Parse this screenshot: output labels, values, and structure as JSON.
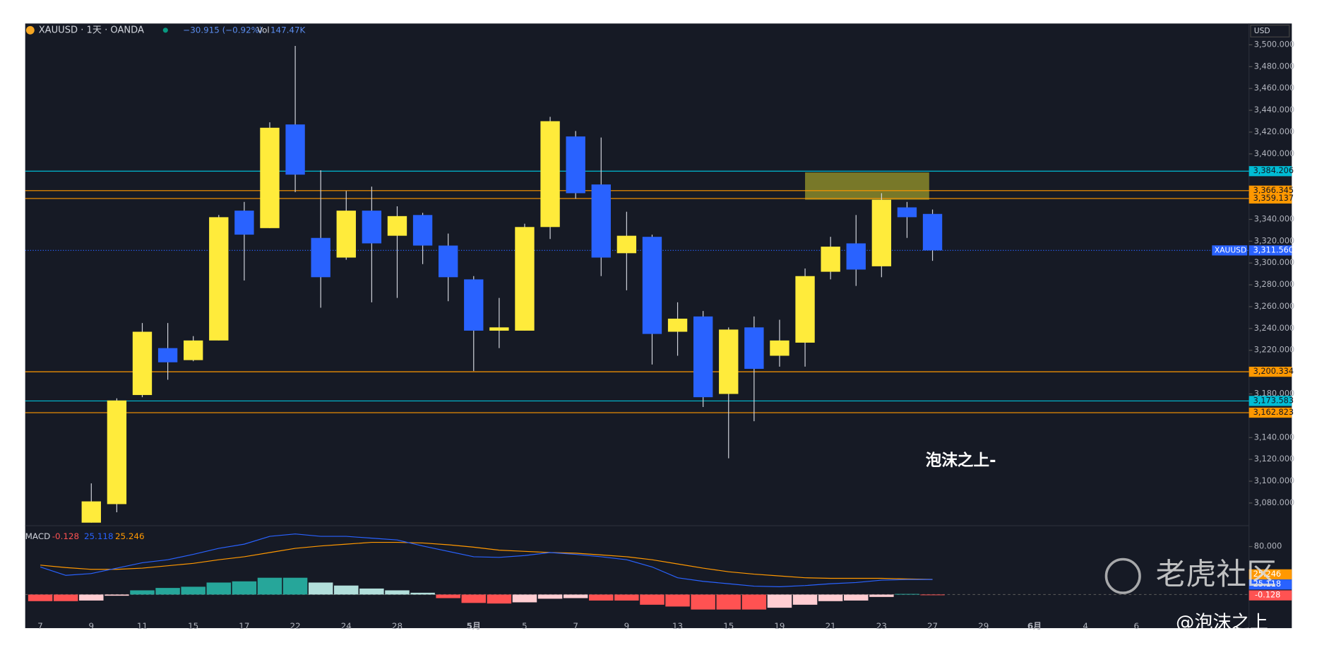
{
  "chart_data": [
    {
      "type": "candlestick",
      "title": "XAUUSD · 1天 · OANDA",
      "change": "−30.915 (−0.92%)",
      "volume_label": "Vol",
      "volume": "147.47K",
      "currency": "USD",
      "symbol_tag": "XAUUSD",
      "annotation": "泡沫之上-",
      "categories": [
        "7",
        null,
        "9",
        null,
        "11",
        null,
        "15",
        null,
        "17",
        null,
        "22",
        null,
        "24",
        null,
        "28",
        null,
        null,
        "5月",
        null,
        "5",
        null,
        "7",
        null,
        "9",
        null,
        "13",
        null,
        "15",
        null,
        "19",
        null,
        "21",
        null,
        "23",
        null,
        "27",
        null,
        "29",
        null,
        "6月",
        null,
        "4",
        null,
        "6"
      ],
      "open": [
        null,
        null,
        3062,
        3079,
        3179,
        3222,
        3211,
        3229,
        3348,
        3332,
        3427,
        3323,
        3305,
        3348,
        3325,
        3344,
        3316,
        3285,
        3238,
        3238,
        3333,
        3416,
        3372,
        3309,
        3324,
        3237,
        3251,
        3180,
        3241,
        3215,
        3227,
        3292,
        3318,
        3297,
        3351,
        3345,
        null,
        null,
        null,
        null,
        null,
        null,
        null,
        null
      ],
      "high": [
        null,
        null,
        3098,
        3176,
        3245,
        3245,
        3233,
        3344,
        3356,
        3429,
        3499,
        3385,
        3366,
        3370,
        3352,
        3346,
        3327,
        3288,
        3268,
        3336,
        3434,
        3421,
        3415,
        3347,
        3326,
        3264,
        3256,
        3241,
        3251,
        3248,
        3295,
        3324,
        3344,
        3364,
        3356,
        3349,
        null,
        null,
        null,
        null,
        null,
        null,
        null,
        null
      ],
      "low": [
        null,
        null,
        3062,
        3071.5,
        3177,
        3193,
        3210,
        3229,
        3284,
        3332,
        3365,
        3259,
        3303,
        3264,
        3268,
        3299,
        3265,
        3201,
        3222,
        3238,
        3322,
        3359,
        3288,
        3275,
        3207,
        3215,
        3168,
        3121,
        3155,
        3205,
        3205,
        3285,
        3279,
        3287,
        3323,
        3302,
        null,
        null,
        null,
        null,
        null,
        null,
        null,
        null
      ],
      "close": [
        null,
        null,
        3081.5,
        3174,
        3237,
        3209,
        3229,
        3342,
        3326,
        3424,
        3381,
        3287,
        3348,
        3318,
        3343,
        3316,
        3287,
        3238,
        3241,
        3333,
        3430,
        3364,
        3305,
        3325,
        3235,
        3249,
        3177,
        3239,
        3203,
        3229,
        3288,
        3315,
        3294,
        3358,
        3342,
        3311.56,
        null,
        null,
        null,
        null,
        null,
        null,
        null,
        null
      ],
      "up_color": "#ffeb3b",
      "down_color": "#2962ff",
      "wick_color": "#d1d4dc",
      "ylim": [
        3060,
        3518
      ],
      "yticks": [
        {
          "value": 3500,
          "label": "3,500.000"
        },
        {
          "value": 3480,
          "label": "3,480.000"
        },
        {
          "value": 3460,
          "label": "3,460.000"
        },
        {
          "value": 3440,
          "label": "3,440.000"
        },
        {
          "value": 3420,
          "label": "3,420.000"
        },
        {
          "value": 3400,
          "label": "3,400.000"
        },
        {
          "value": 3340,
          "label": "3,340.000"
        },
        {
          "value": 3320,
          "label": "3,320.000"
        },
        {
          "value": 3300,
          "label": "3,300.000"
        },
        {
          "value": 3280,
          "label": "3,280.000"
        },
        {
          "value": 3260,
          "label": "3,260.000"
        },
        {
          "value": 3240,
          "label": "3,240.000"
        },
        {
          "value": 3220,
          "label": "3,220.000"
        },
        {
          "value": 3180,
          "label": "3,180.000"
        },
        {
          "value": 3140,
          "label": "3,140.000"
        },
        {
          "value": 3120,
          "label": "3,120.000"
        },
        {
          "value": 3100,
          "label": "3,100.000"
        },
        {
          "value": 3080,
          "label": "3,080.000"
        }
      ],
      "hlines": [
        {
          "value": 3384.206,
          "label": "3,384.206",
          "color": "#00bcd4"
        },
        {
          "value": 3366.345,
          "label": "3,366.345",
          "color": "#ff9800"
        },
        {
          "value": 3359.137,
          "label": "3,359.137",
          "color": "#ff9800"
        },
        {
          "value": 3200.334,
          "label": "3,200.334",
          "color": "#ff9800"
        },
        {
          "value": 3173.583,
          "label": "3,173.583",
          "color": "#00bcd4"
        },
        {
          "value": 3162.823,
          "label": "3,162.823",
          "color": "#ff9800"
        }
      ],
      "last_price": {
        "value": 3311.56,
        "label": "3,311.560",
        "color": "#2962ff"
      },
      "zone": {
        "low": 3358,
        "high": 3383,
        "color": "#8a8a2a"
      }
    },
    {
      "type": "macd",
      "title": "MACD",
      "ylim": [
        -56,
        112
      ],
      "yticks": [
        {
          "value": 80,
          "label": "80.000"
        }
      ],
      "histogram": {
        "colors": [
          "#26a69a",
          "#b2dfdb",
          "#ff5252",
          "#ffcdd2"
        ],
        "values": [
          -11,
          -11,
          -10,
          -2,
          7,
          11,
          13,
          20,
          22,
          28,
          28,
          20,
          15,
          10,
          7,
          3,
          -6,
          -14,
          -15,
          -13,
          -7,
          -6,
          -10,
          -10,
          -17,
          -20,
          -25,
          -25,
          -25,
          -22,
          -17,
          -11,
          -10,
          -4,
          1,
          -0.128,
          null,
          null,
          null,
          null,
          null,
          null,
          null,
          null
        ]
      },
      "series": [
        {
          "color": "#ff9800",
          "values": [
            49,
            45,
            42,
            42,
            44,
            48,
            52,
            58,
            63,
            70,
            77,
            81,
            84,
            87,
            87,
            86,
            83,
            79,
            74,
            72,
            70,
            69,
            66,
            63,
            58,
            51,
            44,
            38,
            34,
            31,
            28,
            27,
            27,
            27,
            26,
            25.246,
            null,
            null,
            null,
            null,
            null,
            null,
            null,
            null
          ]
        },
        {
          "color": "#2962ff",
          "values": [
            46,
            32,
            35,
            44,
            53,
            58,
            67,
            77,
            84,
            97,
            101,
            97,
            97,
            94,
            91,
            81,
            72,
            63,
            62,
            65,
            70,
            67,
            63,
            58,
            46,
            28,
            22,
            18,
            14,
            13,
            15,
            18,
            20,
            24,
            25,
            25.118,
            null,
            null,
            null,
            null,
            null,
            null,
            null,
            null
          ]
        }
      ]
    }
  ],
  "watermark": {
    "brand": "老虎社区",
    "author": "@泡沫之上"
  }
}
